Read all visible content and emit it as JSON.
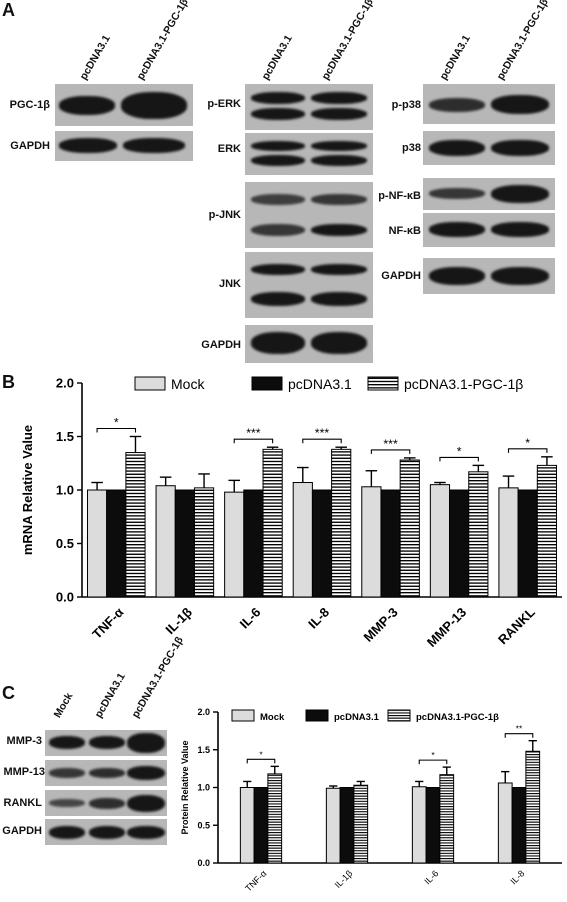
{
  "panel_a": {
    "letter": "A",
    "blot1": {
      "headers": [
        "pcDNA3.1",
        "pcDNA3.1-PGC-1β"
      ],
      "rows": [
        "PGC-1β",
        "GAPDH"
      ]
    },
    "blot2": {
      "headers": [
        "pcDNA3.1",
        "pcDNA3.1-PGC-1β"
      ],
      "rows": [
        "p-ERK",
        "ERK",
        "p-JNK",
        "JNK",
        "GAPDH"
      ]
    },
    "blot3": {
      "headers": [
        "pcDNA3.1",
        "pcDNA3.1-PGC-1β"
      ],
      "rows": [
        "p-p38",
        "p38",
        "p-NF-κB",
        "NF-κB",
        "GAPDH"
      ]
    }
  },
  "panel_b": {
    "letter": "B"
  },
  "panel_c": {
    "letter": "C",
    "blot": {
      "headers": [
        "Mock",
        "pcDNA3.1",
        "pcDNA3.1-PGC-1β"
      ],
      "rows": [
        "MMP-3",
        "MMP-13",
        "RANKL",
        "GAPDH"
      ]
    }
  },
  "chart_data": [
    {
      "type": "bar",
      "ylabel": "mRNA Relative Value",
      "ylim": [
        0,
        2.0
      ],
      "yticks": [
        "0.0",
        "0.5",
        "1.0",
        "1.5",
        "2.0"
      ],
      "categories": [
        "TNF-α",
        "IL-1β",
        "IL-6",
        "IL-8",
        "MMP-3",
        "MMP-13",
        "RANKL"
      ],
      "legend_position": "top",
      "series": [
        {
          "name": "Mock",
          "pattern": "light-gray",
          "values": [
            1.0,
            1.04,
            0.98,
            1.07,
            1.03,
            1.05,
            1.02
          ],
          "errors": [
            0.07,
            0.08,
            0.11,
            0.14,
            0.15,
            0.02,
            0.11
          ]
        },
        {
          "name": "pcDNA3.1",
          "pattern": "black",
          "values": [
            1.0,
            1.0,
            1.0,
            1.0,
            1.0,
            1.0,
            1.0
          ],
          "errors": [
            0,
            0,
            0,
            0,
            0,
            0,
            0
          ]
        },
        {
          "name": "pcDNA3.1-PGC-1β",
          "pattern": "horizontal-stripes",
          "values": [
            1.35,
            1.02,
            1.38,
            1.38,
            1.28,
            1.17,
            1.23
          ],
          "errors": [
            0.15,
            0.13,
            0.02,
            0.02,
            0.02,
            0.06,
            0.08
          ]
        }
      ],
      "annotations": [
        "*",
        "",
        "***",
        "***",
        "***",
        "*",
        "*"
      ]
    },
    {
      "type": "bar",
      "ylabel": "Protein Relative Value",
      "ylim": [
        0,
        2.0
      ],
      "yticks": [
        "0.0",
        "0.5",
        "1.0",
        "1.5",
        "2.0"
      ],
      "categories": [
        "TNF-α",
        "IL-1β",
        "IL-6",
        "IL-8"
      ],
      "legend_position": "top",
      "series": [
        {
          "name": "Mock",
          "pattern": "light-gray",
          "values": [
            1.0,
            0.99,
            1.01,
            1.06
          ],
          "errors": [
            0.08,
            0.03,
            0.07,
            0.15
          ]
        },
        {
          "name": "pcDNA3.1",
          "pattern": "black",
          "values": [
            1.0,
            1.0,
            1.0,
            1.0
          ],
          "errors": [
            0,
            0,
            0,
            0
          ]
        },
        {
          "name": "pcDNA3.1-PGC-1β",
          "pattern": "horizontal-stripes",
          "values": [
            1.18,
            1.03,
            1.17,
            1.48
          ],
          "errors": [
            0.1,
            0.05,
            0.1,
            0.14
          ]
        }
      ],
      "annotations": [
        "*",
        "",
        "*",
        "**"
      ]
    }
  ]
}
